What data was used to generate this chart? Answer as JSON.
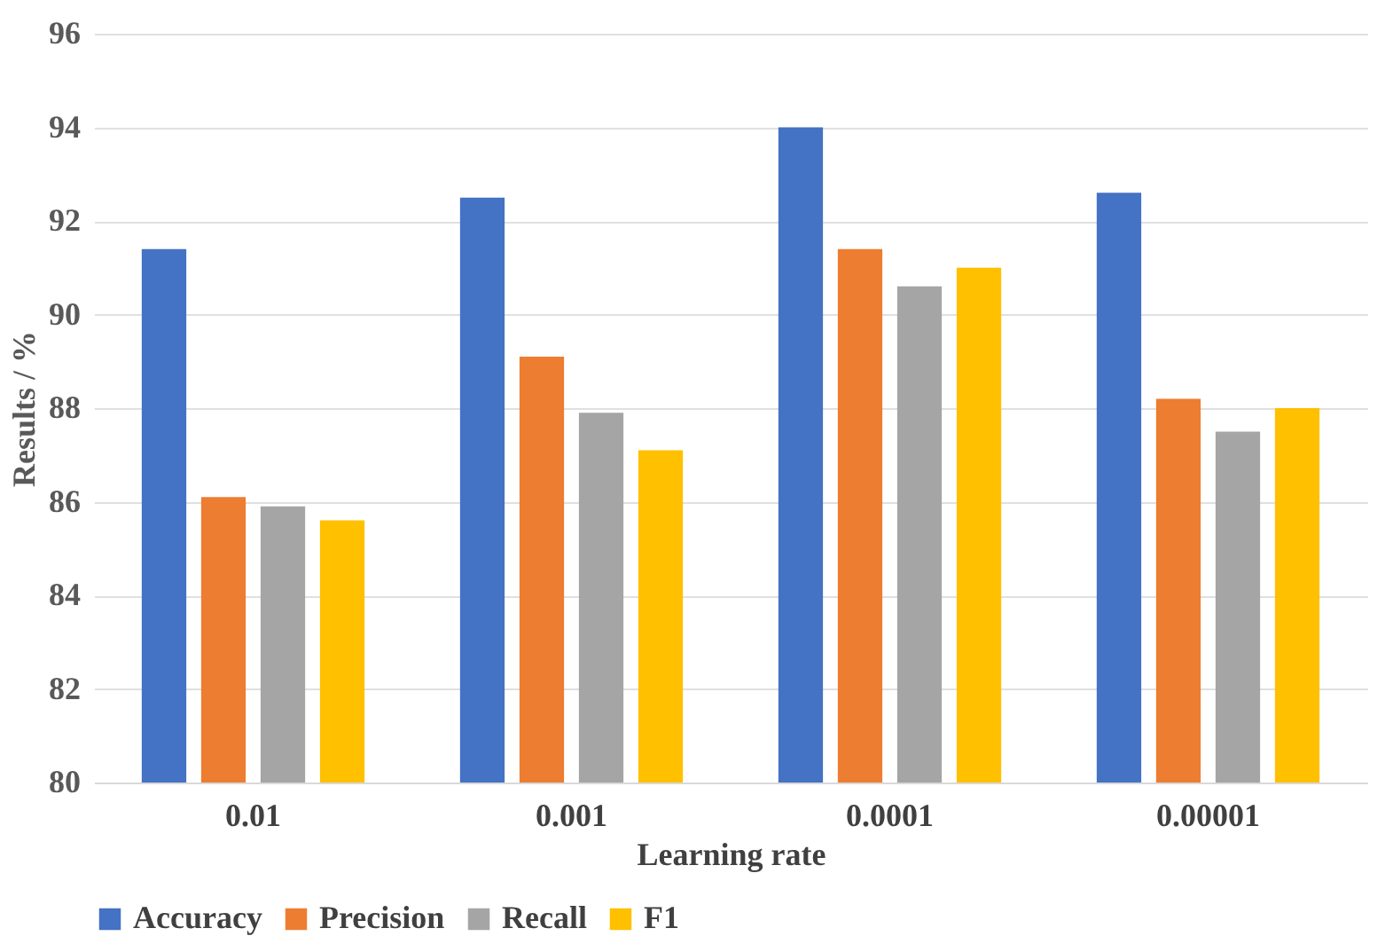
{
  "chart_data": {
    "type": "bar",
    "xlabel": "Learning rate",
    "ylabel": "Results / %",
    "categories": [
      "0.01",
      "0.001",
      "0.0001",
      "0.00001"
    ],
    "series": [
      {
        "name": "Accuracy",
        "color": "#4472c4",
        "values": [
          91.4,
          92.5,
          94.0,
          92.6
        ]
      },
      {
        "name": "Precision",
        "color": "#ed7d31",
        "values": [
          86.1,
          89.1,
          91.4,
          88.2
        ]
      },
      {
        "name": "Recall",
        "color": "#a5a5a5",
        "values": [
          85.9,
          87.9,
          90.6,
          87.5
        ]
      },
      {
        "name": "F1",
        "color": "#ffc000",
        "values": [
          85.6,
          87.1,
          91.0,
          88.0
        ]
      }
    ],
    "ylim": [
      80,
      96
    ],
    "yticks": [
      80,
      82,
      84,
      86,
      88,
      90,
      92,
      94,
      96
    ],
    "grid": "y",
    "legend": "bottom"
  }
}
